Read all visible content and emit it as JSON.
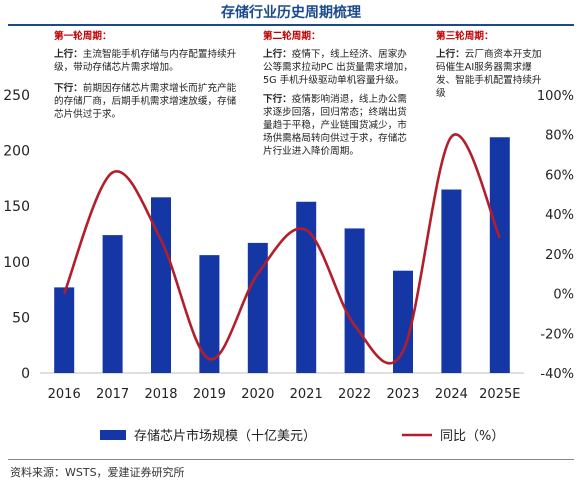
{
  "page_title": "存储行业历史周期梳理",
  "source": "资料来源：WSTS，爱建证券研究所",
  "colors": {
    "bar": "#1537a6",
    "line": "#b41e2a",
    "title": "#1a4a8a",
    "phase": "#c00000"
  },
  "phases": [
    {
      "title": "第一轮周期：",
      "up_tag": "上行：",
      "up_text": "主流智能手机存储与内存配置持续升级，带动存储芯片需求增加。",
      "down_tag": "下行：",
      "down_text": "前期因存储芯片需求增长而扩充产能的存储厂商，后期手机需求增速放缓，存储芯片供过于求。"
    },
    {
      "title": "第二轮周期：",
      "up_tag": "上行：",
      "up_text": "疫情下，线上经济、居家办公等需求拉动PC 出货量需求增加，5G 手机升级驱动单机容量升级。",
      "down_tag": "下行：",
      "down_text": "疫情影响消退，线上办公需求逐步回落，回归常态；终端出货量趋于平稳，产业链囤货减少，市场供需格局转向供过于求，存储芯片行业进入降价周期。"
    },
    {
      "title": "第三轮周期：",
      "up_tag": "上行：",
      "up_text": "云厂商资本开支加码催生AI服务器需求爆发、智能手机配置持续升级"
    }
  ],
  "chart_data": {
    "type": "bar",
    "categories": [
      "2016",
      "2017",
      "2018",
      "2019",
      "2020",
      "2021",
      "2022",
      "2023",
      "2024",
      "2025E"
    ],
    "series": [
      {
        "name": "存储芯片市场规模（十亿美元）",
        "type": "bar",
        "axis": "left",
        "values": [
          77,
          124,
          158,
          106,
          117,
          154,
          130,
          92,
          165,
          212
        ]
      },
      {
        "name": "同比（%）",
        "type": "line",
        "axis": "right",
        "values": [
          0,
          61,
          27,
          -33,
          10,
          32,
          -16,
          -29,
          79,
          28
        ]
      }
    ],
    "y_left": {
      "min": 0,
      "max": 250,
      "ticks": [
        "0",
        "50",
        "100",
        "150",
        "200",
        "250"
      ]
    },
    "y_right": {
      "min": -40,
      "max": 100,
      "ticks": [
        "-40%",
        "-20%",
        "0%",
        "20%",
        "40%",
        "60%",
        "80%",
        "100%"
      ]
    },
    "legend": "bottom"
  }
}
